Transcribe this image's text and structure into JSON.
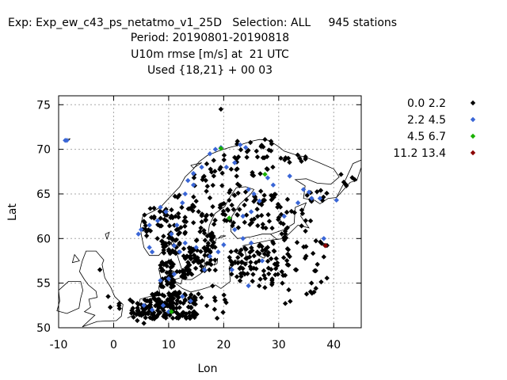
{
  "header": {
    "line1": "Exp: Exp_ew_c43_ps_netatmo_v1_25D   Selection: ALL     945 stations",
    "line2": "Period: 20190801-20190818",
    "line3": "U10m rmse [m/s] at  21 UTC",
    "line4": "Used {18,21} + 00 03"
  },
  "chart_data": {
    "type": "scatter",
    "xlabel": "Lon",
    "ylabel": "Lat",
    "xlim": [
      -10,
      45
    ],
    "ylim": [
      50,
      76
    ],
    "xticks": [
      "-10",
      "0",
      "10",
      "20",
      "30",
      "40"
    ],
    "yticks": [
      "50",
      "55",
      "60",
      "65",
      "70",
      "75"
    ],
    "grid": true,
    "legend_position": "top-right",
    "legend": [
      {
        "label": "0.0 2.2",
        "color": "#000000"
      },
      {
        "label": "2.2 4.5",
        "color": "#3a66d6"
      },
      {
        "label": "4.5 6.7",
        "color": "#19b000"
      },
      {
        "label": "11.2 13.4",
        "color": "#8b0000"
      }
    ],
    "series": [
      {
        "name": "2.2 4.5",
        "color": "#3a66d6",
        "points": [
          [
            -8.8,
            71.0
          ],
          [
            -8.5,
            71.0
          ],
          [
            8,
            62
          ],
          [
            6.5,
            61.5
          ],
          [
            5,
            61
          ],
          [
            6.5,
            59
          ],
          [
            7,
            58.5
          ],
          [
            8.5,
            63.5
          ],
          [
            9.5,
            63
          ],
          [
            10.5,
            60.5
          ],
          [
            11,
            59.2
          ],
          [
            12.5,
            64
          ],
          [
            13,
            65
          ],
          [
            13.5,
            66.5
          ],
          [
            14.5,
            67.3
          ],
          [
            16,
            68
          ],
          [
            17.5,
            69.5
          ],
          [
            18.5,
            70
          ],
          [
            19.5,
            70.2
          ],
          [
            20.5,
            68
          ],
          [
            22,
            68.5
          ],
          [
            23,
            70.5
          ],
          [
            24,
            70.2
          ],
          [
            24.5,
            65.5
          ],
          [
            25.5,
            65
          ],
          [
            26.5,
            64.2
          ],
          [
            25,
            63
          ],
          [
            23.5,
            62.5
          ],
          [
            22,
            61
          ],
          [
            23.5,
            60
          ],
          [
            25,
            59.5
          ],
          [
            20,
            59.3
          ],
          [
            19,
            58.5
          ],
          [
            17.5,
            58
          ],
          [
            15,
            59
          ],
          [
            13,
            59.5
          ],
          [
            11,
            56
          ],
          [
            10,
            55.5
          ],
          [
            8.5,
            55.3
          ],
          [
            12.5,
            53.5
          ],
          [
            14,
            53
          ],
          [
            9,
            52.5
          ],
          [
            7,
            52
          ],
          [
            12,
            58.5
          ],
          [
            21.5,
            56.5
          ],
          [
            24.5,
            54.7
          ],
          [
            31,
            62.5
          ],
          [
            32,
            67
          ],
          [
            33.5,
            64
          ],
          [
            34.5,
            65.5
          ],
          [
            35.5,
            65.2
          ],
          [
            36,
            64.5
          ],
          [
            37.5,
            64.5
          ],
          [
            38.2,
            60
          ],
          [
            40.5,
            64.3
          ],
          [
            28,
            66.8
          ],
          [
            29,
            66
          ],
          [
            27,
            57.5
          ],
          [
            14.5,
            66
          ],
          [
            4.5,
            60.5
          ],
          [
            5.5,
            52.5
          ],
          [
            10,
            51.8
          ],
          [
            11.5,
            61.5
          ],
          [
            16.5,
            56.5
          ]
        ]
      },
      {
        "name": "4.5 6.7",
        "color": "#19b000",
        "points": [
          [
            19.5,
            70.1
          ],
          [
            27.5,
            67.2
          ],
          [
            21,
            62.3
          ],
          [
            10.5,
            51.8
          ]
        ]
      },
      {
        "name": "11.2 13.4",
        "color": "#8b0000",
        "points": [
          [
            38.5,
            59.2
          ]
        ]
      }
    ]
  },
  "coastline_outline": "Europe / Scandinavia coastline"
}
